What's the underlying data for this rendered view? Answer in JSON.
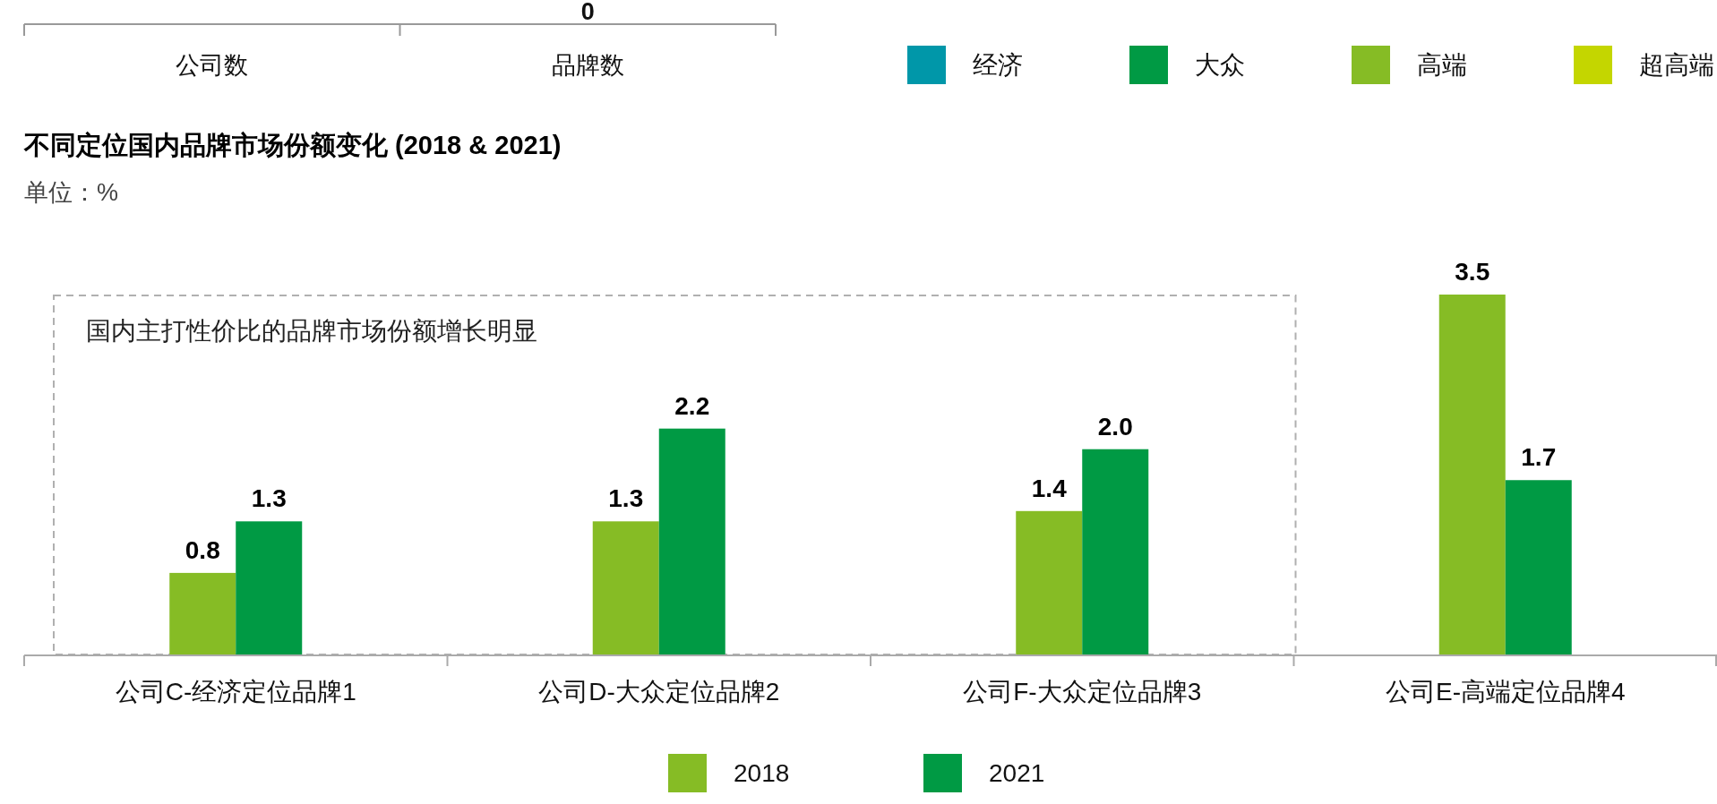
{
  "chart_data": [
    {
      "type": "other",
      "categories": [
        "公司数",
        "品牌数"
      ],
      "series": [
        {
          "name": "经济",
          "color": "#0097a9",
          "values": [
            null,
            null
          ]
        },
        {
          "name": "大众",
          "color": "#009a44",
          "values": [
            null,
            null
          ]
        },
        {
          "name": "高端",
          "color": "#86bc25",
          "values": [
            null,
            null
          ]
        },
        {
          "name": "超高端",
          "color": "#c4d600",
          "values": [
            null,
            0
          ],
          "value_labels": [
            null,
            "0"
          ]
        }
      ],
      "legend": "top right"
    },
    {
      "type": "bar",
      "title": "不同定位国内品牌市场份额变化 (2018 & 2021)",
      "subtitle": "单位：%",
      "categories": [
        "公司C-经济定位品牌1",
        "公司D-大众定位品牌2",
        "公司F-大众定位品牌3",
        "公司E-高端定位品牌4"
      ],
      "series": [
        {
          "name": "2018",
          "color": "#86bc25",
          "values": [
            0.8,
            1.3,
            1.4,
            3.5
          ],
          "value_labels": [
            "0.8",
            "1.3",
            "1.4",
            "3.5"
          ]
        },
        {
          "name": "2021",
          "color": "#009a44",
          "values": [
            1.3,
            2.2,
            2.0,
            1.7
          ],
          "value_labels": [
            "1.3",
            "2.2",
            "2.0",
            "1.7"
          ]
        }
      ],
      "legend": "bottom",
      "annotations": [
        "国内主打性价比的品牌市场份额增长明显"
      ]
    }
  ]
}
